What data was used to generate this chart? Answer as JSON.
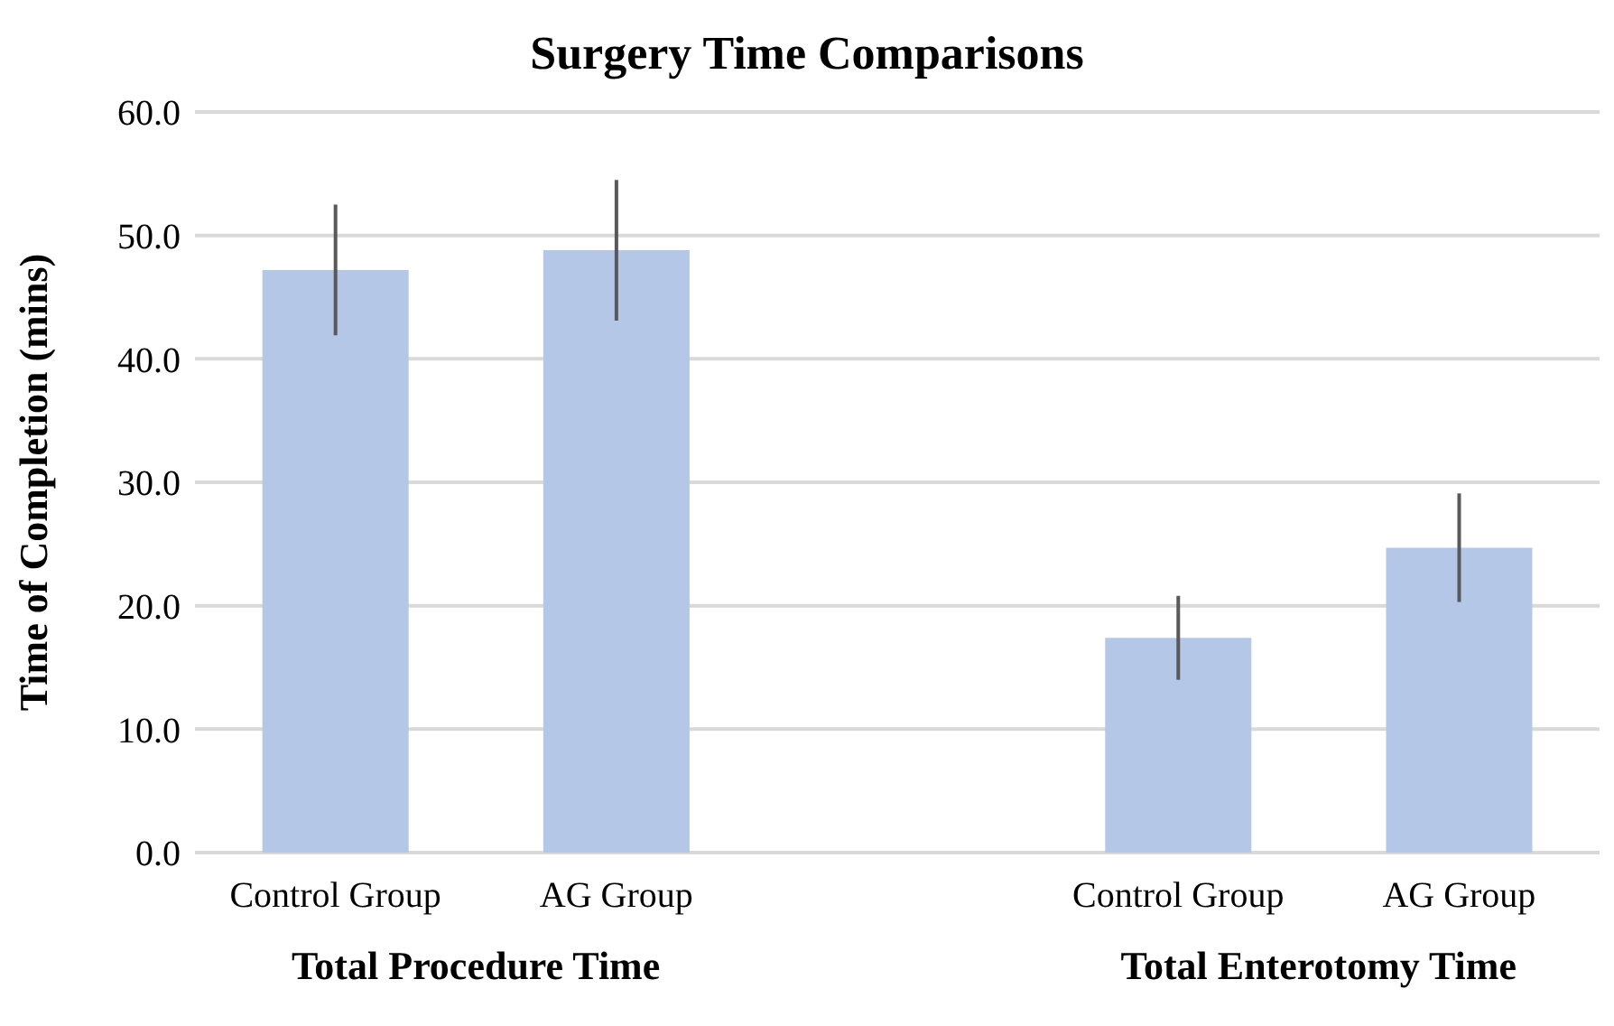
{
  "chart_data": {
    "type": "bar",
    "title": "Surgery Time Comparisons",
    "ylabel": "Time of Completion (mins)",
    "categories": [
      "Control Group",
      "AG Group",
      null,
      "Control Group",
      "AG Group"
    ],
    "values": [
      47.2,
      48.8,
      null,
      17.4,
      24.7
    ],
    "errors": [
      5.3,
      5.7,
      null,
      3.4,
      4.4
    ],
    "color": "#b4c7e7",
    "annotations": [
      "Total Procedure Time",
      "Total Enterotomy Time"
    ],
    "ylim": [
      0,
      60
    ],
    "yticks": [
      {
        "value": 0,
        "label": "0.0"
      },
      {
        "value": 10,
        "label": "10.0"
      },
      {
        "value": 20,
        "label": "20.0"
      },
      {
        "value": 30,
        "label": "30.0"
      },
      {
        "value": 40,
        "label": "40.0"
      },
      {
        "value": 50,
        "label": "50.0"
      },
      {
        "value": 60,
        "label": "60.0"
      }
    ],
    "grid": "y"
  }
}
